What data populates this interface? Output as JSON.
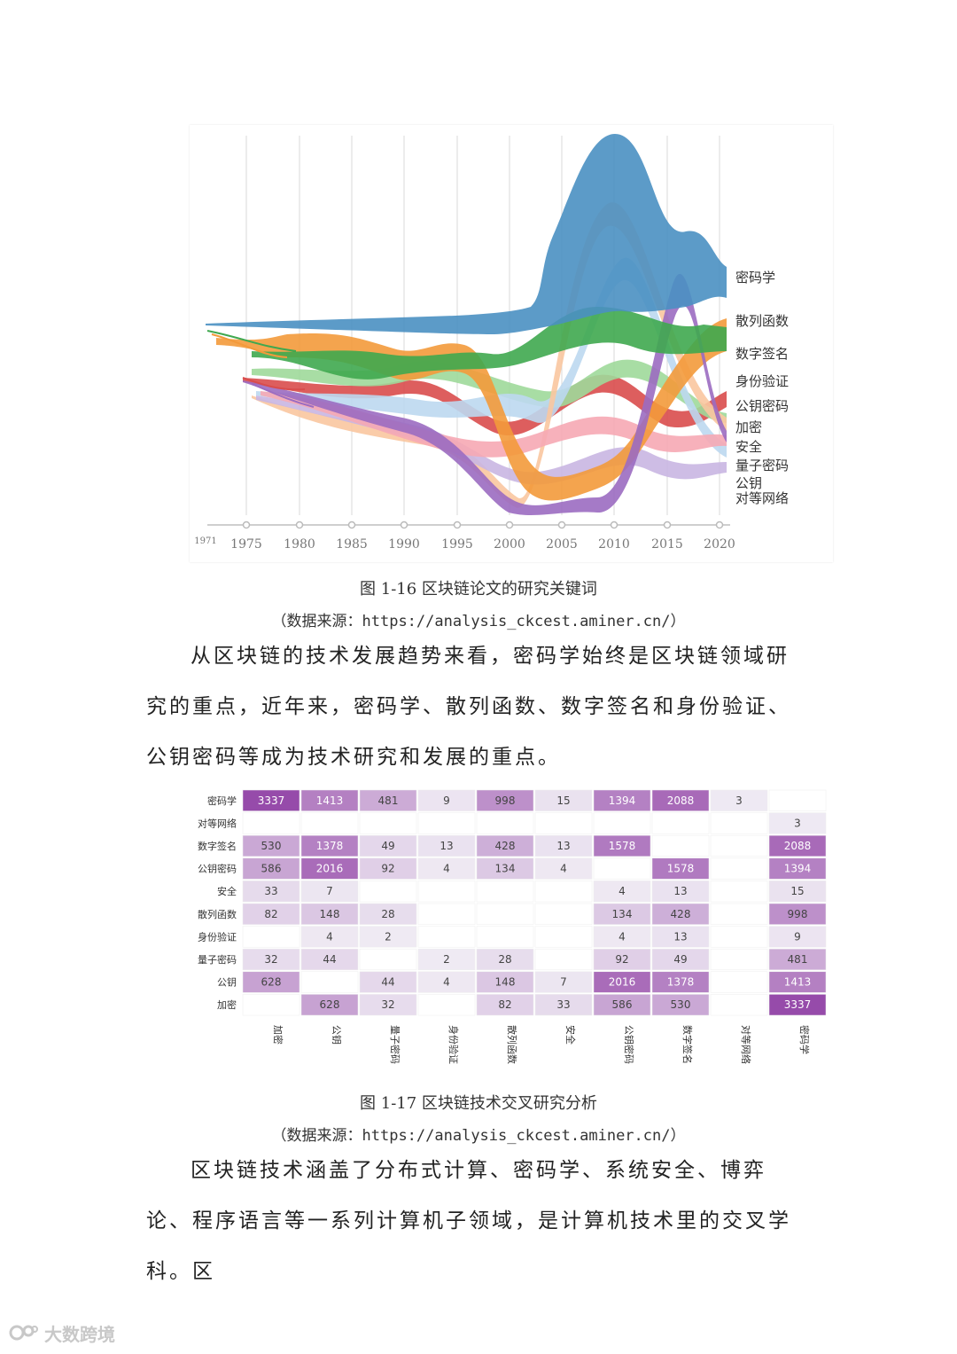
{
  "figure1": {
    "caption": "图 1-16 区块链论文的研究关键词",
    "source": "（数据来源：https://analysis_ckcest.aminer.cn/）",
    "chart_data": {
      "type": "area",
      "x_ticks": [
        "1971",
        "1975",
        "1980",
        "1985",
        "1990",
        "1995",
        "2000",
        "2005",
        "2010",
        "2015",
        "2020"
      ],
      "series": [
        {
          "name": "密码学",
          "color": "#4a90c2"
        },
        {
          "name": "散列函数",
          "color": "#f39a3b"
        },
        {
          "name": "数字签名",
          "color": "#3fa84f"
        },
        {
          "name": "身份验证",
          "color": "#d94c4c"
        },
        {
          "name": "公钥密码",
          "color": "#9fd99a"
        },
        {
          "name": "加密",
          "color": "#9b6cc1"
        },
        {
          "name": "安全",
          "color": "#f6a8b4"
        },
        {
          "name": "量子密码",
          "color": "#c9b6e2"
        },
        {
          "name": "公钥",
          "color": "#f9c6a0"
        },
        {
          "name": "对等网络",
          "color": "#bcd8ef"
        }
      ],
      "grid": true
    }
  },
  "para1": "从区块链的技术发展趋势来看，密码学始终是区块链领域研究的重点，近年来，密码学、散列函数、数字签名和身份验证、公钥密码等成为技术研究和发展的重点。",
  "figure2": {
    "caption": "图 1-17 区块链技术交叉研究分析",
    "source": "（数据来源：https://analysis_ckcest.aminer.cn/）",
    "chart_data": {
      "type": "heatmap",
      "rows": [
        "密码学",
        "对等网络",
        "数字签名",
        "公钥密码",
        "安全",
        "散列函数",
        "身份验证",
        "量子密码",
        "公钥",
        "加密"
      ],
      "columns": [
        "加密",
        "公钥",
        "量子密码",
        "身份验证",
        "散列函数",
        "安全",
        "公钥密码",
        "数字签名",
        "对等网络",
        "密码学"
      ],
      "values": [
        [
          3337,
          1413,
          481,
          9,
          998,
          15,
          1394,
          2088,
          3,
          null
        ],
        [
          null,
          null,
          null,
          null,
          null,
          null,
          null,
          null,
          null,
          3
        ],
        [
          530,
          1378,
          49,
          13,
          428,
          13,
          1578,
          null,
          null,
          2088
        ],
        [
          586,
          2016,
          92,
          4,
          134,
          4,
          null,
          1578,
          null,
          1394
        ],
        [
          33,
          7,
          null,
          null,
          null,
          null,
          4,
          13,
          null,
          15
        ],
        [
          82,
          148,
          28,
          null,
          null,
          null,
          134,
          428,
          null,
          998
        ],
        [
          null,
          4,
          2,
          null,
          null,
          null,
          4,
          13,
          null,
          9
        ],
        [
          32,
          44,
          null,
          2,
          28,
          null,
          92,
          49,
          null,
          481
        ],
        [
          628,
          null,
          44,
          4,
          148,
          7,
          2016,
          1378,
          null,
          1413
        ],
        [
          null,
          628,
          32,
          null,
          82,
          33,
          586,
          530,
          null,
          3337
        ]
      ]
    }
  },
  "para2": "区块链技术涵盖了分布式计算、密码学、系统安全、博弈论、程序语言等一系列计算机子领域，是计算机技术里的交叉学科。区",
  "watermark": "大数跨境"
}
